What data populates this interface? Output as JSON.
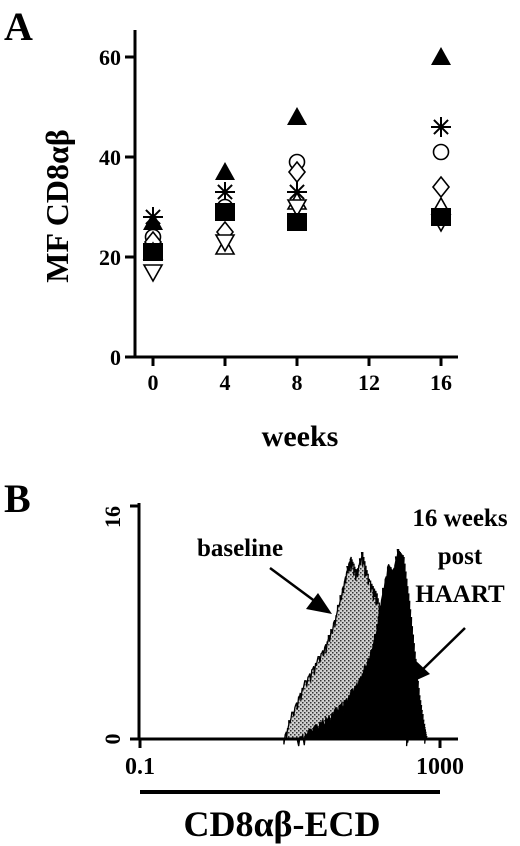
{
  "chart_data": [
    {
      "panel_label": "A",
      "type": "scatter",
      "ylabel": "MF CD8αβ",
      "xlabel": "weeks",
      "x_ticks": [
        "0",
        "4",
        "8",
        "12",
        "16"
      ],
      "y_ticks": [
        "0",
        "20",
        "40",
        "60"
      ],
      "xlim": [
        -1,
        17
      ],
      "ylim": [
        0,
        60
      ],
      "series": [
        {
          "marker": "filled-triangle",
          "points": [
            [
              0,
              27
            ],
            [
              4,
              37
            ],
            [
              8,
              48
            ],
            [
              16,
              60
            ]
          ]
        },
        {
          "marker": "asterisk",
          "points": [
            [
              0,
              28
            ],
            [
              4,
              33
            ],
            [
              8,
              33
            ],
            [
              16,
              46
            ]
          ]
        },
        {
          "marker": "open-circle",
          "points": [
            [
              0,
              24
            ],
            [
              4,
              30
            ],
            [
              8,
              39
            ],
            [
              16,
              41
            ]
          ]
        },
        {
          "marker": "open-diamond",
          "points": [
            [
              0,
              23
            ],
            [
              4,
              25
            ],
            [
              8,
              37
            ],
            [
              16,
              34
            ]
          ]
        },
        {
          "marker": "open-triangle",
          "points": [
            [
              0,
              21
            ],
            [
              4,
              22
            ],
            [
              8,
              31
            ],
            [
              16,
              30
            ]
          ]
        },
        {
          "marker": "open-inv-triangle",
          "points": [
            [
              0,
              17
            ],
            [
              4,
              23
            ],
            [
              8,
              30
            ],
            [
              16,
              27
            ]
          ]
        },
        {
          "marker": "filled-square",
          "points": [
            [
              0,
              21
            ],
            [
              4,
              29
            ],
            [
              8,
              27
            ],
            [
              16,
              28
            ]
          ]
        }
      ]
    },
    {
      "panel_label": "B",
      "type": "area",
      "xlabel": "CD8αβ-ECD",
      "x_scale": "log",
      "x_ticks": [
        "0.1",
        "1000"
      ],
      "y_ticks": [
        "0",
        "16"
      ],
      "xlim": [
        0.1,
        1000
      ],
      "ylim": [
        0,
        16
      ],
      "series": [
        {
          "name": "baseline",
          "fill": "stippled",
          "points": [
            [
              8,
              0
            ],
            [
              10,
              1.5
            ],
            [
              14,
              3.5
            ],
            [
              20,
              5
            ],
            [
              28,
              6.3
            ],
            [
              35,
              7.5
            ],
            [
              45,
              9.5
            ],
            [
              55,
              11.5
            ],
            [
              63,
              12.5
            ],
            [
              75,
              11.5
            ],
            [
              90,
              12.8
            ],
            [
              110,
              11
            ],
            [
              140,
              10
            ],
            [
              170,
              8
            ],
            [
              210,
              6
            ],
            [
              260,
              3.5
            ],
            [
              320,
              1
            ],
            [
              380,
              0
            ]
          ]
        },
        {
          "name": "16 weeks post HAART",
          "fill": "black",
          "points": [
            [
              12,
              0
            ],
            [
              20,
              0.8
            ],
            [
              35,
              1.8
            ],
            [
              55,
              2.8
            ],
            [
              80,
              4
            ],
            [
              110,
              5.5
            ],
            [
              140,
              7.5
            ],
            [
              160,
              9.5
            ],
            [
              200,
              12
            ],
            [
              230,
              11.5
            ],
            [
              270,
              13
            ],
            [
              320,
              12.5
            ],
            [
              380,
              9.5
            ],
            [
              450,
              6
            ],
            [
              520,
              3
            ],
            [
              600,
              1
            ],
            [
              650,
              0
            ]
          ]
        }
      ],
      "annotations": [
        "baseline",
        "16 weeks",
        "post",
        "HAART"
      ]
    }
  ]
}
